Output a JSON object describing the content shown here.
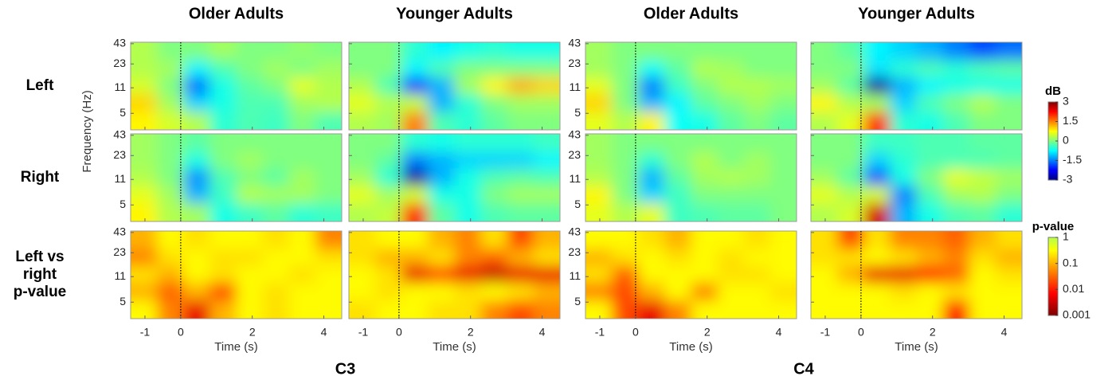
{
  "chart_data": {
    "type": "heatmap-grid",
    "column_titles": [
      "Older Adults",
      "Younger Adults",
      "Older Adults",
      "Younger Adults"
    ],
    "group_labels": [
      "C3",
      "C4"
    ],
    "row_labels": [
      [
        "Left"
      ],
      [
        "Right"
      ],
      [
        "Left vs",
        "right",
        "p-value"
      ]
    ],
    "x_label": "Time (s)",
    "y_label": "Frequency (Hz)",
    "x": [
      -1.03,
      -0.29,
      0.44,
      1.18,
      1.92,
      2.66,
      3.39,
      4.13
    ],
    "y": [
      4,
      7,
      12,
      20,
      34
    ],
    "xlim": [
      -1.4,
      4.5
    ],
    "ylim": [
      3,
      45
    ],
    "xticks": [
      -1,
      0,
      2,
      4
    ],
    "yticks": [
      5,
      11,
      23,
      43
    ],
    "yscale": "log",
    "panels": [
      [
        [
          [
            0.8,
            0.5,
            0.3,
            -0.5,
            -0.3,
            -0.4,
            0,
            -0.3
          ],
          [
            1.0,
            0.2,
            -1.0,
            -0.6,
            -0.3,
            -0.3,
            0.2,
            0.3
          ],
          [
            0.5,
            0,
            -1.6,
            -0.6,
            -0.2,
            0,
            0.6,
            0.3
          ],
          [
            0.3,
            0.2,
            -0.8,
            -0.3,
            0,
            0.2,
            0,
            0.2
          ],
          [
            0.3,
            0,
            0,
            0.2,
            0,
            0,
            0.1,
            0
          ]
        ],
        [
          [
            0.3,
            0.2,
            1.5,
            -0.3,
            -0.5,
            -0.2,
            0,
            0
          ],
          [
            0.6,
            0.3,
            0.4,
            -1.2,
            -0.5,
            0,
            0.2,
            0.2
          ],
          [
            0.3,
            -0.3,
            -2.0,
            -1.2,
            0.2,
            0.8,
            1.2,
            1.0
          ],
          [
            0,
            0,
            -0.8,
            -0.3,
            0,
            0,
            0,
            0
          ],
          [
            0,
            0,
            -0.5,
            -0.8,
            -0.6,
            -0.5,
            -0.6,
            -0.6
          ]
        ],
        [
          [
            0.6,
            0.3,
            0.8,
            -0.7,
            -0.6,
            -0.2,
            0,
            -0.2
          ],
          [
            1.0,
            0,
            -1.2,
            -0.8,
            -0.2,
            0,
            0.2,
            0
          ],
          [
            0.6,
            0,
            -1.5,
            -0.4,
            0,
            0.3,
            0.3,
            0.2
          ],
          [
            0.2,
            0,
            -0.7,
            -0.2,
            0.3,
            0.2,
            0,
            0
          ],
          [
            0.2,
            0,
            0,
            0,
            0,
            0,
            0,
            0
          ]
        ],
        [
          [
            0.3,
            0.6,
            2.0,
            -0.5,
            -0.6,
            -0.3,
            0,
            0
          ],
          [
            0.8,
            0.3,
            0.2,
            -1.0,
            -0.3,
            0,
            0.3,
            0
          ],
          [
            0.2,
            -0.2,
            -2.8,
            -1.2,
            -0.8,
            -0.6,
            -0.6,
            -0.6
          ],
          [
            0,
            0,
            -0.9,
            -0.5,
            -0.3,
            -0.5,
            -0.3,
            -0.2
          ],
          [
            0,
            -0.2,
            -0.8,
            -1.0,
            -1.2,
            -1.5,
            -1.8,
            -1.6
          ]
        ]
      ],
      [
        [
          [
            0.8,
            0.3,
            0.2,
            -0.6,
            -0.4,
            -0.2,
            -0.5,
            -0.4
          ],
          [
            0.6,
            0.2,
            -1.2,
            -0.4,
            0.3,
            0.2,
            0.2,
            0
          ],
          [
            0.3,
            0,
            -1.4,
            -0.3,
            0,
            -0.2,
            0.2,
            0
          ],
          [
            0.2,
            0,
            -0.6,
            0,
            0.2,
            0,
            0,
            0
          ],
          [
            0.2,
            0,
            -0.2,
            0,
            0,
            0,
            0,
            0
          ]
        ],
        [
          [
            0.3,
            0.4,
            2.0,
            -0.2,
            -0.6,
            -0.3,
            -0.2,
            -0.2
          ],
          [
            0.6,
            0.2,
            0.5,
            -0.6,
            -0.6,
            0,
            0.2,
            0.2
          ],
          [
            0.2,
            -0.5,
            -2.8,
            -1.2,
            -0.6,
            -0.3,
            -0.2,
            -0.3
          ],
          [
            0,
            -0.2,
            -1.5,
            -1.2,
            -1.0,
            -1.0,
            -1.0,
            -0.8
          ],
          [
            0,
            0,
            -0.5,
            -0.6,
            -0.5,
            -0.5,
            -0.5,
            -0.4
          ]
        ],
        [
          [
            0.6,
            0.3,
            0.6,
            -0.4,
            -0.3,
            -0.2,
            -0.2,
            0
          ],
          [
            0.8,
            0,
            -1.0,
            -0.4,
            0,
            0,
            0,
            0
          ],
          [
            0.3,
            0,
            -1.2,
            -0.2,
            0.2,
            0.3,
            0.2,
            0
          ],
          [
            0.2,
            0,
            -0.5,
            0,
            0.3,
            0,
            0.2,
            0
          ],
          [
            0.2,
            0,
            0,
            0,
            0,
            0,
            0,
            0
          ]
        ],
        [
          [
            0.3,
            0.5,
            2.5,
            -1.2,
            -0.6,
            -0.3,
            -0.2,
            -0.5
          ],
          [
            0.6,
            0.3,
            0.5,
            -1.5,
            -0.3,
            0.2,
            0.3,
            0
          ],
          [
            0.2,
            -0.2,
            -1.8,
            -0.6,
            0,
            0.6,
            0.4,
            0.2
          ],
          [
            0,
            0,
            -1.0,
            -0.5,
            -0.3,
            -0.3,
            -0.3,
            -0.2
          ],
          [
            0,
            0,
            -0.4,
            -0.4,
            -0.3,
            -0.3,
            -0.2,
            -0.2
          ]
        ]
      ],
      [
        [
          [
            0.3,
            0.05,
            0.005,
            0.1,
            0.3,
            0.2,
            0.3,
            0.3
          ],
          [
            0.1,
            0.03,
            0.1,
            0.02,
            0.3,
            0.2,
            0.3,
            0.3
          ],
          [
            0.2,
            0.1,
            0.3,
            0.2,
            0.3,
            0.3,
            0.2,
            0.3
          ],
          [
            0.05,
            0.2,
            0.3,
            0.2,
            0.2,
            0.3,
            0.3,
            0.2
          ],
          [
            0.1,
            0.3,
            0.2,
            0.3,
            0.3,
            0.2,
            0.3,
            0.05
          ]
        ],
        [
          [
            0.2,
            0.3,
            0.3,
            0.2,
            0.2,
            0.05,
            0.02,
            0.05
          ],
          [
            0.3,
            0.2,
            0.3,
            0.3,
            0.2,
            0.3,
            0.2,
            0.1
          ],
          [
            0.3,
            0.2,
            0.005,
            0.02,
            0.005,
            0.003,
            0.005,
            0.005
          ],
          [
            0.2,
            0.1,
            0.1,
            0.2,
            0.05,
            0.03,
            0.1,
            0.2
          ],
          [
            0.2,
            0.3,
            0.3,
            0.1,
            0.05,
            0.2,
            0.02,
            0.1
          ]
        ],
        [
          [
            0.3,
            0.02,
            0.005,
            0.05,
            0.3,
            0.3,
            0.3,
            0.3
          ],
          [
            0.05,
            0.02,
            0.1,
            0.3,
            0.05,
            0.3,
            0.3,
            0.2
          ],
          [
            0.2,
            0.03,
            0.3,
            0.3,
            0.3,
            0.2,
            0.2,
            0.3
          ],
          [
            0.1,
            0.2,
            0.3,
            0.2,
            0.3,
            0.2,
            0.3,
            0.3
          ],
          [
            0.3,
            0.3,
            0.2,
            0.1,
            0.3,
            0.3,
            0.2,
            0.3
          ]
        ],
        [
          [
            0.3,
            0.3,
            0.3,
            0.3,
            0.3,
            0.01,
            0.3,
            0.3
          ],
          [
            0.3,
            0.3,
            0.3,
            0.2,
            0.3,
            0.2,
            0.3,
            0.3
          ],
          [
            0.3,
            0.1,
            0.005,
            0.005,
            0.01,
            0.03,
            0.3,
            0.2
          ],
          [
            0.2,
            0.2,
            0.3,
            0.2,
            0.1,
            0.05,
            0.2,
            0.1
          ],
          [
            0.2,
            0.02,
            0.2,
            0.05,
            0.05,
            0.03,
            0.1,
            0.2
          ]
        ]
      ]
    ],
    "colorbars": [
      {
        "title": "dB",
        "clim": [
          -3,
          3
        ],
        "ticks": [
          3,
          1.5,
          0,
          -1.5,
          -3
        ],
        "colormap": "jet"
      },
      {
        "title": "p-value",
        "clim": [
          0.001,
          1
        ],
        "ticks": [
          1,
          0.1,
          0.01,
          0.001
        ],
        "scale": "log",
        "colormap": "jet"
      }
    ]
  }
}
